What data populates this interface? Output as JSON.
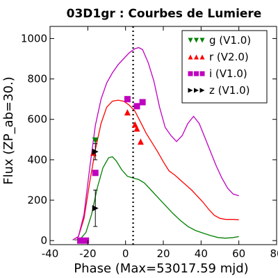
{
  "chart_data": {
    "type": "line",
    "title": "03D1gr : Courbes de Lumiere",
    "xlabel": "Phase (Max=53017.59 mjd)",
    "ylabel": "Flux (ZP_ab=30.)",
    "xlim": [
      -40,
      80
    ],
    "ylim": [
      -20,
      1060
    ],
    "xticks": [
      -40,
      -20,
      0,
      20,
      40,
      60,
      80
    ],
    "yticks": [
      0,
      200,
      400,
      600,
      800,
      1000
    ],
    "xtick_labels": [
      "-40",
      "-20",
      "0",
      "20",
      "40",
      "60",
      "80"
    ],
    "ytick_labels": [
      "0",
      "200",
      "400",
      "600",
      "800",
      "1000"
    ],
    "grid": false,
    "legend_position": "top-right",
    "max_line_x": 4,
    "series": [
      {
        "name": "g (V1.0)",
        "color": "#008000",
        "marker": "triangle-down",
        "curve": [
          [
            -27,
            2
          ],
          [
            -24,
            8
          ],
          [
            -21,
            40
          ],
          [
            -18,
            130
          ],
          [
            -15,
            260
          ],
          [
            -12,
            360
          ],
          [
            -9,
            410
          ],
          [
            -7,
            415
          ],
          [
            -5,
            395
          ],
          [
            -2,
            350
          ],
          [
            1,
            318
          ],
          [
            4,
            310
          ],
          [
            7,
            302
          ],
          [
            10,
            285
          ],
          [
            13,
            255
          ],
          [
            17,
            215
          ],
          [
            21,
            175
          ],
          [
            25,
            135
          ],
          [
            29,
            100
          ],
          [
            33,
            70
          ],
          [
            37,
            50
          ],
          [
            41,
            37
          ],
          [
            45,
            25
          ],
          [
            49,
            15
          ],
          [
            53,
            12
          ],
          [
            57,
            15
          ],
          [
            60,
            20
          ]
        ],
        "points": [
          [
            -16,
            495,
            0
          ]
        ]
      },
      {
        "name": "r (V2.0)",
        "color": "#ff0000",
        "marker": "triangle-up",
        "curve": [
          [
            -28,
            3
          ],
          [
            -25,
            20
          ],
          [
            -22,
            110
          ],
          [
            -19,
            290
          ],
          [
            -16,
            450
          ],
          [
            -13,
            580
          ],
          [
            -10,
            660
          ],
          [
            -7,
            690
          ],
          [
            -4,
            695
          ],
          [
            -1,
            690
          ],
          [
            2,
            670
          ],
          [
            5,
            640
          ],
          [
            8,
            585
          ],
          [
            11,
            530
          ],
          [
            14,
            485
          ],
          [
            17,
            440
          ],
          [
            20,
            390
          ],
          [
            23,
            345
          ],
          [
            26,
            325
          ],
          [
            29,
            300
          ],
          [
            32,
            275
          ],
          [
            35,
            250
          ],
          [
            38,
            220
          ],
          [
            41,
            190
          ],
          [
            44,
            155
          ],
          [
            47,
            125
          ],
          [
            50,
            110
          ],
          [
            53,
            105
          ],
          [
            57,
            105
          ],
          [
            60,
            103
          ]
        ],
        "points": [
          [
            -17,
            435,
            0
          ],
          [
            1,
            635,
            0
          ],
          [
            5,
            575,
            0
          ],
          [
            6,
            555,
            0
          ],
          [
            8,
            490,
            0
          ]
        ]
      },
      {
        "name": "i (V1.0)",
        "color": "#bf00bf",
        "marker": "square",
        "curve": [
          [
            -28,
            3
          ],
          [
            -25,
            20
          ],
          [
            -22,
            130
          ],
          [
            -19,
            360
          ],
          [
            -16,
            570
          ],
          [
            -13,
            700
          ],
          [
            -10,
            780
          ],
          [
            -7,
            830
          ],
          [
            -4,
            870
          ],
          [
            -1,
            900
          ],
          [
            2,
            930
          ],
          [
            5,
            950
          ],
          [
            7,
            955
          ],
          [
            9,
            945
          ],
          [
            12,
            880
          ],
          [
            15,
            790
          ],
          [
            18,
            660
          ],
          [
            21,
            560
          ],
          [
            24,
            520
          ],
          [
            27,
            490
          ],
          [
            30,
            520
          ],
          [
            33,
            580
          ],
          [
            36,
            615
          ],
          [
            39,
            580
          ],
          [
            42,
            510
          ],
          [
            45,
            440
          ],
          [
            48,
            370
          ],
          [
            51,
            310
          ],
          [
            54,
            260
          ],
          [
            57,
            230
          ],
          [
            60,
            222
          ]
        ],
        "points": [
          [
            -24,
            0,
            0
          ],
          [
            -21,
            0,
            0
          ],
          [
            -16,
            335,
            0
          ],
          [
            1,
            700,
            0
          ],
          [
            6,
            665,
            0
          ],
          [
            9,
            685,
            0
          ]
        ]
      },
      {
        "name": "z (V1.0)",
        "color": "#000000",
        "marker": "triangle-right",
        "curve": [],
        "points": [
          [
            -16,
            160,
            90
          ],
          [
            -16,
            440,
            40
          ]
        ]
      }
    ]
  }
}
